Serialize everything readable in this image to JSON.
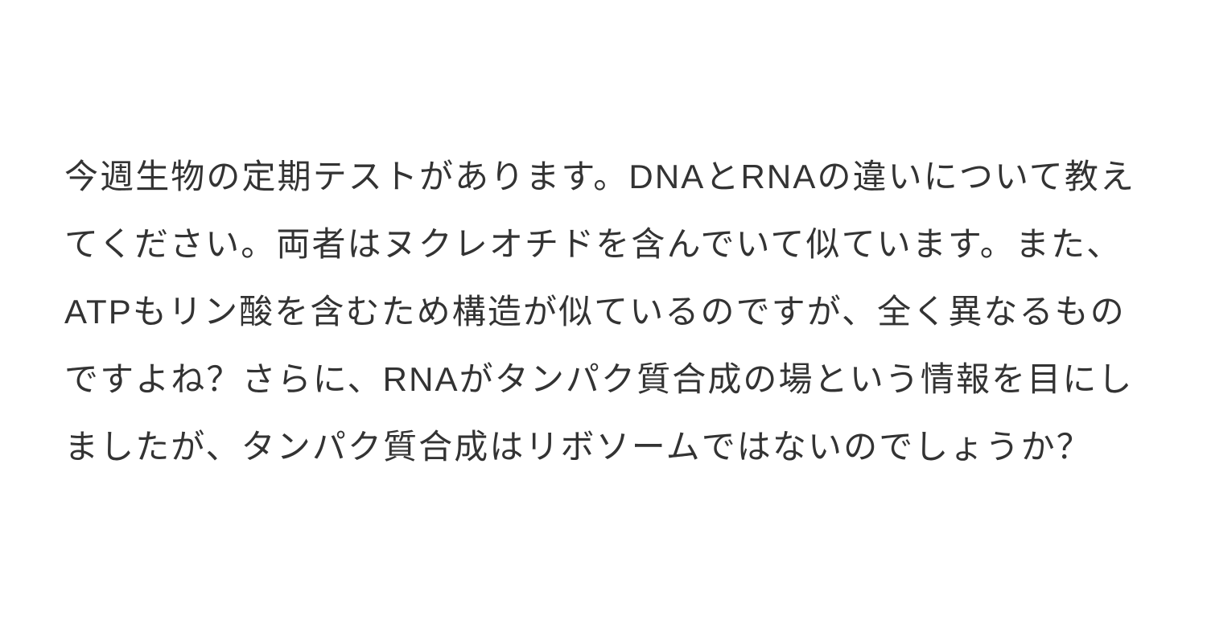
{
  "paragraph": {
    "text": "今週生物の定期テストがあります。DNAとRNAの違いについて教えてください。両者はヌクレオチドを含んでいて似ています。また、ATPもリン酸を含むため構造が似ているのですが、全く異なるものですよね？さらに、RNAがタンパク質合成の場という情報を目にしましたが、タンパク質合成はリボソームではないのでしょうか？",
    "font_size": 42,
    "line_height": 2.0,
    "color": "#333333",
    "background_color": "#ffffff",
    "letter_spacing": "0.05em"
  }
}
